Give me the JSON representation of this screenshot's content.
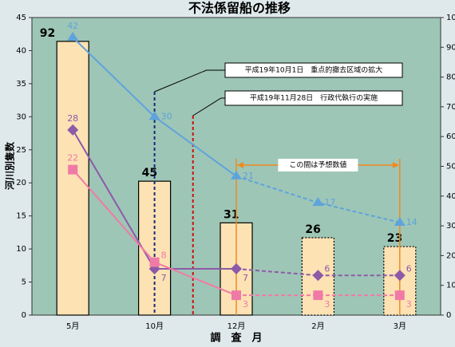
{
  "chart_data": {
    "type": "bar-line",
    "title": "不法係留船の推移",
    "y_label": "河川別隻数",
    "x_label": "調　査　月",
    "categories": [
      "5月",
      "10月",
      "12月",
      "2月",
      "3月"
    ],
    "bars": {
      "values": [
        92,
        45,
        31,
        26,
        23
      ],
      "axis": "y2",
      "color": "#fde2b4"
    },
    "series": [
      {
        "color": "#5fa3dc",
        "marker": "triangle",
        "values": [
          42,
          30,
          21,
          17,
          14
        ]
      },
      {
        "color": "#8d5aa8",
        "marker": "diamond",
        "values": [
          28,
          7,
          7,
          6,
          6
        ]
      },
      {
        "color": "#f07aa6",
        "marker": "square",
        "values": [
          22,
          8,
          3,
          3,
          3
        ]
      }
    ],
    "ylim": [
      0,
      45
    ],
    "yticks": [
      0,
      5,
      10,
      15,
      20,
      25,
      30,
      35,
      40,
      45
    ],
    "y2lim": [
      0,
      100
    ],
    "y2ticks": [
      0,
      10,
      20,
      30,
      40,
      50,
      60,
      70,
      80,
      90,
      100
    ],
    "events": [
      {
        "text": "平成19年10月1日　重点的撤去区域の拡大",
        "x": 1,
        "color": "#1a2a7a"
      },
      {
        "text": "平成19年11月28日　行政代執行の実施",
        "x": 1.47,
        "color": "#cc1010"
      }
    ],
    "forecast": {
      "text": "この間は予想数値",
      "from": 2,
      "to": 4,
      "color": "#f08a1e"
    }
  }
}
